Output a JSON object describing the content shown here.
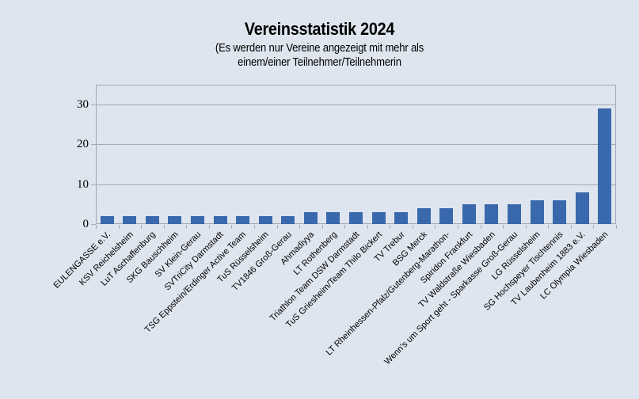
{
  "header": {
    "title": "Vereinsstatistik 2024",
    "subtitle_line1": "(Es werden nur Vereine angezeigt mit mehr als",
    "subtitle_line2": "einem/einer Teilnehmer/Teilnehmerin"
  },
  "chart_data": {
    "type": "bar",
    "title": "Vereinsstatistik 2024",
    "subtitle": "(Es werden nur Vereine angezeigt mit mehr als einem/einer Teilnehmer/Teilnehmerin",
    "categories": [
      "EULENGASSE e.V.",
      "KSV Reichelsheim",
      "LuT Aschaffenburg",
      "SKG Bauschheim",
      "SV Klein-Gerau",
      "SVTriCity Darmstadt",
      "TSG Eppstein/Erdinger Active Team",
      "TuS Rüsselsheim",
      "TV1846 Groß-Gerau",
      "Ahmadiyya",
      "LT Rothenberg",
      "Triathlon Team DSW Darmstadt",
      "TuS Griesheim/Team Thilo Bickert",
      "TV Trebur",
      "BSG Merck",
      "LT Rheinhessen-Pfalz/Gutenberg-Marathon-",
      "Spiridon Frankfurt",
      "TV Waldstraße Wiesbaden",
      "Wenn's um Sport geht - Sparkasse Groß-Gerau",
      "LG Rüsselsheim",
      "SG Hochspeyer Tischtennis",
      "TV Laubenheim 1883 e.V.",
      "LC Olympia Wiesbaden"
    ],
    "values": [
      2,
      2,
      2,
      2,
      2,
      2,
      2,
      2,
      2,
      3,
      3,
      3,
      3,
      3,
      4,
      4,
      5,
      5,
      5,
      6,
      6,
      8,
      29
    ],
    "xlabel": "",
    "ylabel": "",
    "ylim": [
      0,
      35
    ],
    "yticks": [
      0,
      10,
      20,
      30
    ],
    "grid": true,
    "legend": "none",
    "bar_color": "#3A68AC",
    "gridline_color": "#a5abb4",
    "background_color": "#dee5ef"
  }
}
